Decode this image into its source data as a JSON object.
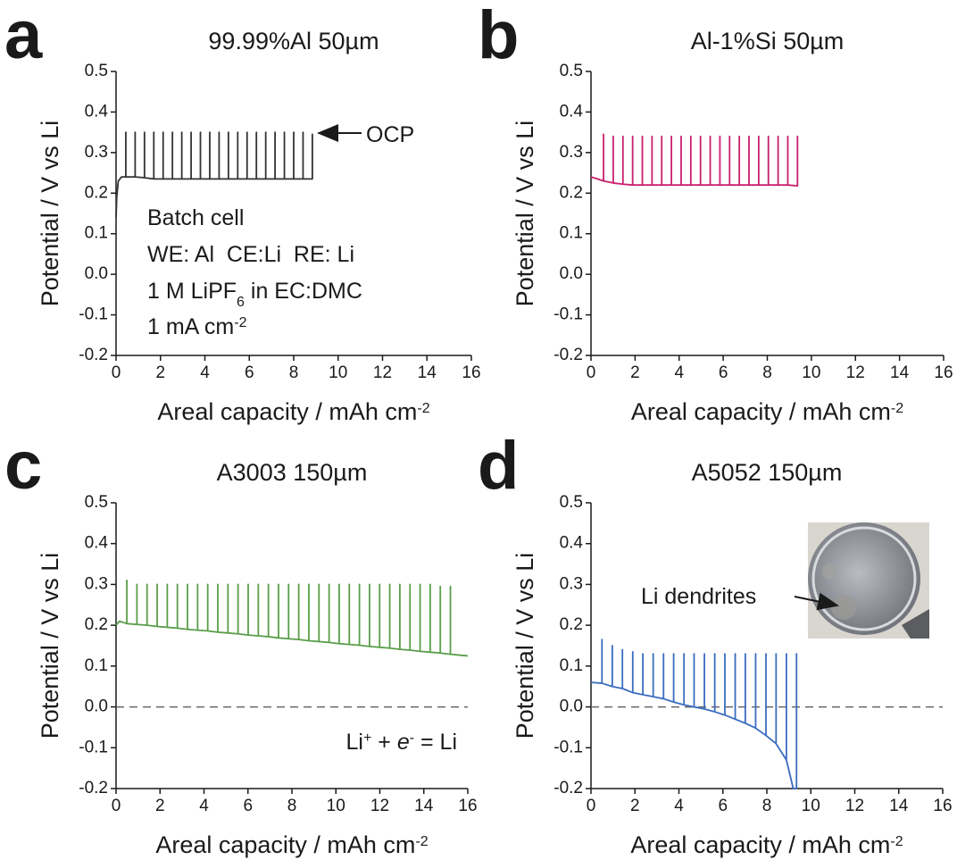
{
  "chart_data": [
    {
      "type": "line",
      "panel_label": "a",
      "title": "99.99%Al 50µm",
      "x_label": [
        "Areal capacity / mAh cm",
        {
          "sup": "-2"
        }
      ],
      "y_label": "Potential / V vs Li",
      "xlim": [
        0,
        16
      ],
      "ylim": [
        -0.2,
        0.5
      ],
      "xticks": [
        0,
        2,
        4,
        6,
        8,
        10,
        12,
        14,
        16
      ],
      "yticks": [
        -0.2,
        -0.1,
        {
          "value": 0,
          "label": "0.0"
        },
        0.1,
        0.2,
        0.3,
        0.4,
        0.5
      ],
      "series": [
        {
          "color": "#333333",
          "x": [
            0,
            0.03,
            0.1,
            0.25,
            0.44,
            0.44,
            0.44,
            0.86,
            0.86,
            0.86,
            1.28,
            1.28,
            1.28,
            1.7,
            1.7,
            1.7,
            2.12,
            2.12,
            2.12,
            2.54,
            2.54,
            2.54,
            2.96,
            2.96,
            2.96,
            3.38,
            3.38,
            3.38,
            3.8,
            3.8,
            3.8,
            4.22,
            4.22,
            4.22,
            4.64,
            4.64,
            4.64,
            5.06,
            5.06,
            5.06,
            5.48,
            5.48,
            5.48,
            5.9,
            5.9,
            5.9,
            6.32,
            6.32,
            6.32,
            6.74,
            6.74,
            6.74,
            7.16,
            7.16,
            7.16,
            7.58,
            7.58,
            7.58,
            8,
            8,
            8,
            8.42,
            8.42,
            8.42,
            8.84,
            8.84,
            8.84
          ],
          "values": [
            0.14,
            0.19,
            0.23,
            0.24,
            0.24,
            0.35,
            0.24,
            0.24,
            0.35,
            0.24,
            0.238,
            0.35,
            0.238,
            0.235,
            0.35,
            0.235,
            0.235,
            0.35,
            0.235,
            0.235,
            0.35,
            0.235,
            0.235,
            0.35,
            0.235,
            0.235,
            0.35,
            0.235,
            0.235,
            0.35,
            0.235,
            0.235,
            0.35,
            0.235,
            0.235,
            0.35,
            0.235,
            0.235,
            0.35,
            0.235,
            0.235,
            0.35,
            0.235,
            0.235,
            0.35,
            0.235,
            0.235,
            0.35,
            0.235,
            0.235,
            0.35,
            0.235,
            0.235,
            0.35,
            0.235,
            0.235,
            0.35,
            0.235,
            0.235,
            0.35,
            0.235,
            0.235,
            0.35,
            0.235,
            0.235,
            0.345,
            0.235
          ]
        }
      ],
      "annotations": [
        "OCP",
        "Batch cell",
        "WE: Al  CE:Li  RE: Li",
        [
          "1 M LiPF",
          {
            "sub": "6"
          },
          " in EC:DMC"
        ],
        [
          "1 mA cm",
          {
            "sup": "-2"
          }
        ]
      ]
    },
    {
      "type": "line",
      "panel_label": "b",
      "title": "Al-1%Si 50µm",
      "x_label": [
        "Areal capacity / mAh cm",
        {
          "sup": "-2"
        }
      ],
      "y_label": "Potential / V vs Li",
      "xlim": [
        0,
        16
      ],
      "ylim": [
        -0.2,
        0.5
      ],
      "xticks": [
        0,
        2,
        4,
        6,
        8,
        10,
        12,
        14,
        16
      ],
      "yticks": [
        -0.2,
        -0.1,
        {
          "value": 0,
          "label": "0.0"
        },
        0.1,
        0.2,
        0.3,
        0.4,
        0.5
      ],
      "series": [
        {
          "color": "#c8206e",
          "x": [
            0,
            0.3,
            0.57,
            0.57,
            0.57,
            1.01,
            1.01,
            1.01,
            1.45,
            1.45,
            1.45,
            1.89,
            1.89,
            1.89,
            2.33,
            2.33,
            2.33,
            2.77,
            2.77,
            2.77,
            3.21,
            3.21,
            3.21,
            3.65,
            3.65,
            3.65,
            4.09,
            4.09,
            4.09,
            4.53,
            4.53,
            4.53,
            4.97,
            4.97,
            4.97,
            5.41,
            5.41,
            5.41,
            5.85,
            5.85,
            5.85,
            6.29,
            6.29,
            6.29,
            6.73,
            6.73,
            6.73,
            7.17,
            7.17,
            7.17,
            7.61,
            7.61,
            7.61,
            8.05,
            8.05,
            8.05,
            8.49,
            8.49,
            8.49,
            8.93,
            8.93,
            8.93,
            9.37,
            9.37,
            9.37
          ],
          "values": [
            0.24,
            0.235,
            0.23,
            0.345,
            0.23,
            0.225,
            0.34,
            0.225,
            0.222,
            0.34,
            0.222,
            0.22,
            0.34,
            0.22,
            0.22,
            0.34,
            0.22,
            0.22,
            0.34,
            0.22,
            0.22,
            0.34,
            0.22,
            0.22,
            0.34,
            0.22,
            0.22,
            0.34,
            0.22,
            0.22,
            0.34,
            0.22,
            0.22,
            0.34,
            0.22,
            0.22,
            0.34,
            0.22,
            0.22,
            0.34,
            0.22,
            0.22,
            0.34,
            0.22,
            0.22,
            0.34,
            0.22,
            0.22,
            0.34,
            0.22,
            0.22,
            0.34,
            0.22,
            0.22,
            0.34,
            0.22,
            0.22,
            0.34,
            0.22,
            0.22,
            0.34,
            0.22,
            0.218,
            0.34,
            0.218
          ]
        }
      ]
    },
    {
      "type": "line",
      "panel_label": "c",
      "title": "A3003 150µm",
      "x_label": [
        "Areal capacity / mAh cm",
        {
          "sup": "-2"
        }
      ],
      "y_label": "Potential / V vs Li",
      "xlim": [
        0,
        16
      ],
      "ylim": [
        -0.2,
        0.5
      ],
      "xticks": [
        0,
        2,
        4,
        6,
        8,
        10,
        12,
        14,
        16
      ],
      "yticks": [
        -0.2,
        -0.1,
        {
          "value": 0,
          "label": "0.0"
        },
        0.1,
        0.2,
        0.3,
        0.4,
        0.5
      ],
      "hline": 0,
      "series": [
        {
          "color": "#5a9e4a",
          "x": [
            0,
            0.15,
            0.49,
            0.49,
            0.49,
            0.95,
            0.95,
            0.95,
            1.41,
            1.41,
            1.41,
            1.87,
            1.87,
            1.87,
            2.33,
            2.33,
            2.33,
            2.79,
            2.79,
            2.79,
            3.25,
            3.25,
            3.25,
            3.71,
            3.71,
            3.71,
            4.17,
            4.17,
            4.17,
            4.63,
            4.63,
            4.63,
            5.09,
            5.09,
            5.09,
            5.55,
            5.55,
            5.55,
            6.01,
            6.01,
            6.01,
            6.47,
            6.47,
            6.47,
            6.93,
            6.93,
            6.93,
            7.39,
            7.39,
            7.39,
            7.85,
            7.85,
            7.85,
            8.31,
            8.31,
            8.31,
            8.77,
            8.77,
            8.77,
            9.23,
            9.23,
            9.23,
            9.69,
            9.69,
            9.69,
            10.15,
            10.15,
            10.15,
            10.61,
            10.61,
            10.61,
            11.07,
            11.07,
            11.07,
            11.53,
            11.53,
            11.53,
            11.99,
            11.99,
            11.99,
            12.45,
            12.45,
            12.45,
            12.91,
            12.91,
            12.91,
            13.37,
            13.37,
            13.37,
            13.83,
            13.83,
            13.83,
            14.29,
            14.29,
            14.29,
            14.75,
            14.75,
            14.75,
            15.21,
            15.21,
            15.21,
            16
          ],
          "values": [
            0.2,
            0.21,
            0.204,
            0.31,
            0.204,
            0.202,
            0.3,
            0.202,
            0.2,
            0.3,
            0.2,
            0.197,
            0.3,
            0.197,
            0.195,
            0.3,
            0.195,
            0.193,
            0.3,
            0.193,
            0.19,
            0.3,
            0.19,
            0.188,
            0.3,
            0.188,
            0.186,
            0.3,
            0.186,
            0.183,
            0.3,
            0.183,
            0.181,
            0.3,
            0.181,
            0.179,
            0.3,
            0.179,
            0.176,
            0.3,
            0.176,
            0.174,
            0.3,
            0.174,
            0.172,
            0.3,
            0.172,
            0.169,
            0.3,
            0.169,
            0.167,
            0.3,
            0.167,
            0.165,
            0.3,
            0.165,
            0.162,
            0.3,
            0.162,
            0.16,
            0.3,
            0.16,
            0.158,
            0.3,
            0.158,
            0.155,
            0.3,
            0.155,
            0.153,
            0.3,
            0.153,
            0.151,
            0.3,
            0.151,
            0.148,
            0.3,
            0.148,
            0.146,
            0.3,
            0.146,
            0.144,
            0.3,
            0.144,
            0.141,
            0.3,
            0.141,
            0.139,
            0.3,
            0.139,
            0.136,
            0.3,
            0.136,
            0.134,
            0.3,
            0.134,
            0.132,
            0.295,
            0.132,
            0.129,
            0.295,
            0.129,
            0.125
          ]
        }
      ],
      "annotations": [
        [
          "Li",
          {
            "sup": "+"
          },
          " + ",
          {
            "italic": "e"
          },
          {
            "sup": "-"
          },
          " = Li"
        ]
      ]
    },
    {
      "type": "line",
      "panel_label": "d",
      "title": "A5052 150µm",
      "x_label": [
        "Areal capacity / mAh cm",
        {
          "sup": "-2"
        }
      ],
      "y_label": "Potential / V vs Li",
      "xlim": [
        0,
        16
      ],
      "ylim": [
        -0.2,
        0.5
      ],
      "xticks": [
        0,
        2,
        4,
        6,
        8,
        10,
        12,
        14,
        16
      ],
      "yticks": [
        -0.2,
        -0.1,
        {
          "value": 0,
          "label": "0.0"
        },
        0.1,
        0.2,
        0.3,
        0.4,
        0.5
      ],
      "hline": 0,
      "series": [
        {
          "color": "#3a6cc0",
          "x": [
            0,
            0.5,
            0.5,
            0.5,
            0.97,
            0.97,
            0.97,
            1.43,
            1.43,
            1.43,
            1.9,
            1.9,
            1.9,
            2.36,
            2.36,
            2.36,
            2.83,
            2.83,
            2.83,
            3.3,
            3.3,
            3.3,
            3.76,
            3.76,
            3.76,
            4.23,
            4.23,
            4.23,
            4.69,
            4.69,
            4.69,
            5.16,
            5.16,
            5.16,
            5.63,
            5.63,
            5.63,
            6.09,
            6.09,
            6.09,
            6.56,
            6.56,
            6.56,
            7.02,
            7.02,
            7.02,
            7.49,
            7.49,
            7.49,
            7.96,
            7.96,
            7.96,
            8.42,
            8.42,
            8.42,
            8.89,
            8.89,
            8.89,
            9.2,
            9.35,
            9.35,
            9.35
          ],
          "values": [
            0.06,
            0.058,
            0.165,
            0.058,
            0.05,
            0.15,
            0.05,
            0.045,
            0.14,
            0.045,
            0.035,
            0.135,
            0.035,
            0.03,
            0.13,
            0.03,
            0.025,
            0.13,
            0.025,
            0.02,
            0.13,
            0.02,
            0.012,
            0.13,
            0.012,
            0.005,
            0.13,
            0.005,
            0,
            0.13,
            0,
            -0.005,
            0.13,
            -0.005,
            -0.012,
            0.13,
            -0.012,
            -0.02,
            0.13,
            -0.02,
            -0.03,
            0.13,
            -0.03,
            -0.04,
            0.13,
            -0.04,
            -0.052,
            0.13,
            -0.052,
            -0.07,
            0.13,
            -0.07,
            -0.09,
            0.13,
            -0.09,
            -0.13,
            0.13,
            -0.13,
            -0.2,
            -0.2,
            0.13,
            -0.2
          ]
        }
      ],
      "annotations": [
        "Li dendrites"
      ]
    }
  ]
}
